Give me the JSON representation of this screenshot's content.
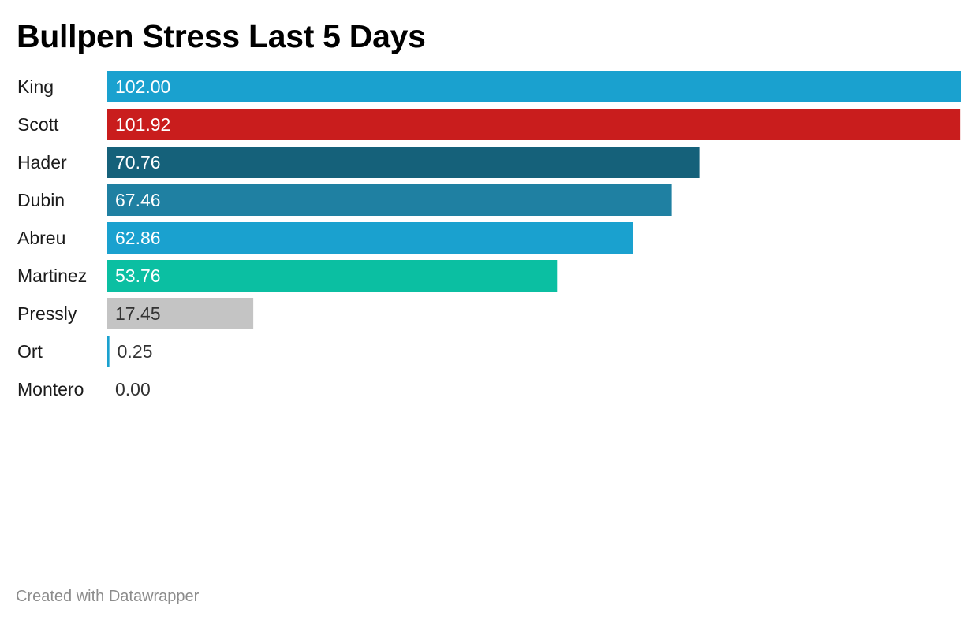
{
  "chart_data": {
    "type": "bar",
    "orientation": "horizontal",
    "title": "Bullpen Stress Last 5 Days",
    "categories": [
      "King",
      "Scott",
      "Hader",
      "Dubin",
      "Abreu",
      "Martinez",
      "Pressly",
      "Ort",
      "Montero"
    ],
    "values": [
      102.0,
      101.92,
      70.76,
      67.46,
      62.86,
      53.76,
      17.45,
      0.25,
      0.0
    ],
    "value_labels": [
      "102.00",
      "101.92",
      "70.76",
      "67.46",
      "62.86",
      "53.76",
      "17.45",
      "0.25",
      "0.00"
    ],
    "colors": [
      "#1aa1cf",
      "#c91d1d",
      "#15617a",
      "#1f80a2",
      "#1aa1cf",
      "#0bbfa2",
      "#c4c4c4",
      "#1aa1cf",
      "#1aa1cf"
    ],
    "label_colors": [
      "#ffffff",
      "#ffffff",
      "#ffffff",
      "#ffffff",
      "#ffffff",
      "#ffffff",
      "#333333",
      "#333333",
      "#333333"
    ],
    "xlim": [
      0,
      102
    ],
    "grid": false,
    "legend": "none"
  },
  "footer": {
    "credit": "Created with Datawrapper"
  }
}
